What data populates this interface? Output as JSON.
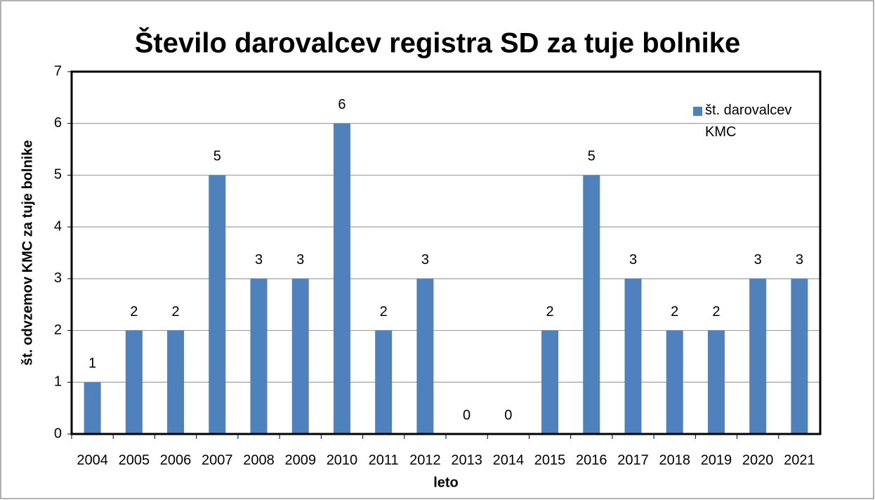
{
  "chart_data": {
    "type": "bar",
    "title": "Število darovalcev registra SD za tuje bolnike",
    "x_label": "leto",
    "y_label": "št. odvzemov KMC za tuje bolnike",
    "categories": [
      "2004",
      "2005",
      "2006",
      "2007",
      "2008",
      "2009",
      "2010",
      "2011",
      "2012",
      "2013",
      "2014",
      "2015",
      "2016",
      "2017",
      "2018",
      "2019",
      "2020",
      "2021"
    ],
    "series": [
      {
        "name": "št. darovalcev KMC",
        "color": "#4f81bd",
        "values": [
          1,
          2,
          2,
          5,
          3,
          3,
          6,
          2,
          3,
          0,
          0,
          2,
          5,
          3,
          2,
          2,
          3,
          3
        ]
      }
    ],
    "ylim": [
      0,
      7
    ],
    "yticks": [
      0,
      1,
      2,
      3,
      4,
      5,
      6,
      7
    ],
    "grid": true,
    "legend": "upper right"
  }
}
